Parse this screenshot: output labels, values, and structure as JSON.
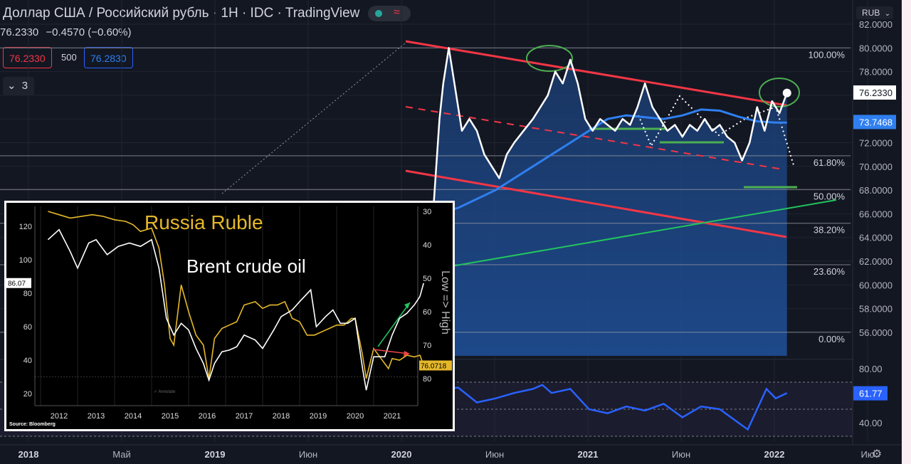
{
  "header": {
    "title": "Доллар США / Российский рубль · 1H · IDC · TradingView",
    "price": "76.2330",
    "change": "−0.4570 (−0.60%)",
    "bid": "76.2330",
    "spread": "500",
    "ask": "76.2830",
    "collapse_count": "3",
    "currency": "RUB",
    "currency_chevron": "chevron-down-icon"
  },
  "colors": {
    "background": "#131722",
    "price_line": "#ffffff",
    "ma_line": "#2f7ff0",
    "channel_line": "#f23645",
    "support_line": "#4caf50",
    "trend_line": "#22c55e",
    "fill": "#1e4b8f",
    "rsi_line": "#2962ff",
    "brent_line": "#e5b82a"
  },
  "chart_data": [
    {
      "type": "line",
      "title": "Доллар США / Российский рубль",
      "x_labels": [
        "2018",
        "Май",
        "2019",
        "Июн",
        "2020",
        "Июн",
        "2021",
        "Июн",
        "2022",
        "Ию"
      ],
      "y_ticks": [
        "82.0000",
        "80.0000",
        "78.0000",
        "76.0000",
        "74.0000",
        "72.0000",
        "70.0000",
        "68.0000",
        "66.0000",
        "64.0000",
        "62.0000",
        "60.0000",
        "58.0000",
        "56.0000"
      ],
      "ylim": [
        55,
        82.5
      ],
      "last_price": "76.2330",
      "ma_value": "73.7468",
      "fib_levels": [
        {
          "label": "100.00%",
          "value": 80.0
        },
        {
          "label": "61.80%",
          "value": 70.9
        },
        {
          "label": "50.00%",
          "value": 68.05
        },
        {
          "label": "38.20%",
          "value": 65.2
        },
        {
          "label": "23.60%",
          "value": 61.7
        },
        {
          "label": "0.00%",
          "value": 56.0
        }
      ],
      "series": [
        {
          "values": [
            [
              2020.1,
              66
            ],
            [
              2020.17,
              67
            ],
            [
              2020.2,
              74
            ],
            [
              2020.22,
              77
            ],
            [
              2020.25,
              80
            ],
            [
              2020.28,
              77
            ],
            [
              2020.32,
              73
            ],
            [
              2020.36,
              74
            ],
            [
              2020.4,
              73
            ],
            [
              2020.44,
              71
            ],
            [
              2020.48,
              70
            ],
            [
              2020.52,
              69
            ],
            [
              2020.56,
              71
            ],
            [
              2020.6,
              72
            ],
            [
              2020.65,
              73
            ],
            [
              2020.7,
              74
            ],
            [
              2020.74,
              75
            ],
            [
              2020.78,
              76
            ],
            [
              2020.82,
              78
            ],
            [
              2020.86,
              77
            ],
            [
              2020.9,
              79
            ],
            [
              2020.94,
              77
            ],
            [
              2020.98,
              74
            ],
            [
              2021.02,
              73
            ],
            [
              2021.06,
              74
            ],
            [
              2021.1,
              73.5
            ],
            [
              2021.14,
              73
            ],
            [
              2021.18,
              74
            ],
            [
              2021.22,
              73.5
            ],
            [
              2021.26,
              75
            ],
            [
              2021.3,
              77
            ],
            [
              2021.34,
              75
            ],
            [
              2021.38,
              74
            ],
            [
              2021.42,
              73
            ],
            [
              2021.46,
              73.5
            ],
            [
              2021.5,
              72.5
            ],
            [
              2021.54,
              73.5
            ],
            [
              2021.58,
              73
            ],
            [
              2021.62,
              74
            ],
            [
              2021.66,
              73
            ],
            [
              2021.7,
              73.5
            ],
            [
              2021.74,
              72.5
            ],
            [
              2021.78,
              72
            ],
            [
              2021.82,
              70.5
            ],
            [
              2021.86,
              72
            ],
            [
              2021.9,
              75
            ],
            [
              2021.94,
              73
            ],
            [
              2021.98,
              75.5
            ],
            [
              2022.02,
              74.5
            ],
            [
              2022.06,
              76.2
            ]
          ]
        },
        {
          "values": [
            [
              2020.1,
              65.5
            ],
            [
              2020.3,
              66.5
            ],
            [
              2020.5,
              68
            ],
            [
              2020.7,
              70
            ],
            [
              2020.9,
              72
            ],
            [
              2021.0,
              73
            ],
            [
              2021.1,
              74
            ],
            [
              2021.2,
              74.3
            ],
            [
              2021.4,
              74
            ],
            [
              2021.5,
              74.3
            ],
            [
              2021.6,
              74.8
            ],
            [
              2021.7,
              74.7
            ],
            [
              2021.8,
              74.2
            ],
            [
              2021.9,
              73.8
            ],
            [
              2022.0,
              73.7
            ],
            [
              2022.06,
              73.7
            ]
          ]
        }
      ]
    },
    {
      "type": "line",
      "y_ticks": [
        "80.00",
        "40.00"
      ],
      "last_value": "61.77",
      "ylim": [
        25,
        85
      ],
      "series": [
        {
          "values": [
            [
              2020.18,
              64
            ],
            [
              2020.3,
              66
            ],
            [
              2020.4,
              55
            ],
            [
              2020.5,
              58
            ],
            [
              2020.6,
              62
            ],
            [
              2020.7,
              65
            ],
            [
              2020.75,
              68
            ],
            [
              2020.8,
              62
            ],
            [
              2020.9,
              65
            ],
            [
              2021.0,
              50
            ],
            [
              2021.1,
              47
            ],
            [
              2021.2,
              52
            ],
            [
              2021.3,
              49
            ],
            [
              2021.4,
              54
            ],
            [
              2021.5,
              44
            ],
            [
              2021.6,
              52
            ],
            [
              2021.7,
              50
            ],
            [
              2021.8,
              40
            ],
            [
              2021.85,
              35
            ],
            [
              2021.9,
              50
            ],
            [
              2021.95,
              65
            ],
            [
              2022.0,
              58
            ],
            [
              2022.06,
              62
            ]
          ]
        }
      ]
    },
    {
      "type": "line",
      "title": "Russia Ruble",
      "subtitle": "Brent crude oil",
      "x_labels": [
        "2012",
        "2013",
        "2014",
        "2015",
        "2016",
        "2017",
        "2018",
        "2019",
        "2020",
        "2021"
      ],
      "y_left_ticks": [
        "120",
        "100",
        "80",
        "60",
        "40",
        "20"
      ],
      "y_right_ticks": [
        "30",
        "40",
        "50",
        "60",
        "70",
        "80"
      ],
      "right_axis_label": "Low => High",
      "left_last": "86.07",
      "right_last": "76.0718",
      "annotate": "Annotate",
      "source": "Source: Bloomberg",
      "series": [
        {
          "name": "Brent crude oil",
          "values": [
            [
              2011.7,
              112
            ],
            [
              2012.0,
              118
            ],
            [
              2012.3,
              105
            ],
            [
              2012.5,
              95
            ],
            [
              2012.8,
              110
            ],
            [
              2013.0,
              112
            ],
            [
              2013.3,
              103
            ],
            [
              2013.6,
              108
            ],
            [
              2013.9,
              110
            ],
            [
              2014.2,
              108
            ],
            [
              2014.5,
              112
            ],
            [
              2014.7,
              95
            ],
            [
              2014.9,
              65
            ],
            [
              2015.1,
              55
            ],
            [
              2015.3,
              62
            ],
            [
              2015.5,
              58
            ],
            [
              2015.7,
              47
            ],
            [
              2015.9,
              38
            ],
            [
              2016.05,
              28
            ],
            [
              2016.2,
              38
            ],
            [
              2016.4,
              45
            ],
            [
              2016.6,
              46
            ],
            [
              2016.8,
              48
            ],
            [
              2017.0,
              55
            ],
            [
              2017.3,
              52
            ],
            [
              2017.5,
              47
            ],
            [
              2017.8,
              58
            ],
            [
              2018.0,
              66
            ],
            [
              2018.3,
              70
            ],
            [
              2018.5,
              75
            ],
            [
              2018.8,
              82
            ],
            [
              2018.95,
              60
            ],
            [
              2019.2,
              66
            ],
            [
              2019.4,
              70
            ],
            [
              2019.6,
              62
            ],
            [
              2019.8,
              62
            ],
            [
              2020.0,
              65
            ],
            [
              2020.2,
              35
            ],
            [
              2020.3,
              22
            ],
            [
              2020.5,
              42
            ],
            [
              2020.8,
              42
            ],
            [
              2021.0,
              55
            ],
            [
              2021.2,
              65
            ],
            [
              2021.4,
              68
            ],
            [
              2021.6,
              73
            ],
            [
              2021.75,
              78
            ],
            [
              2021.85,
              86
            ]
          ]
        },
        {
          "name": "Russia Ruble",
          "values": [
            [
              2011.7,
              30
            ],
            [
              2012.0,
              31
            ],
            [
              2012.3,
              32
            ],
            [
              2012.6,
              31.5
            ],
            [
              2012.9,
              31
            ],
            [
              2013.2,
              31.5
            ],
            [
              2013.5,
              32.5
            ],
            [
              2013.8,
              33
            ],
            [
              2014.0,
              34
            ],
            [
              2014.2,
              36
            ],
            [
              2014.5,
              35
            ],
            [
              2014.7,
              41
            ],
            [
              2014.85,
              52
            ],
            [
              2015.0,
              68
            ],
            [
              2015.1,
              70
            ],
            [
              2015.3,
              52
            ],
            [
              2015.5,
              60
            ],
            [
              2015.7,
              67
            ],
            [
              2015.9,
              70
            ],
            [
              2016.05,
              80
            ],
            [
              2016.2,
              68
            ],
            [
              2016.4,
              65
            ],
            [
              2016.6,
              64
            ],
            [
              2016.8,
              63
            ],
            [
              2017.0,
              58
            ],
            [
              2017.3,
              57
            ],
            [
              2017.5,
              59
            ],
            [
              2017.7,
              58
            ],
            [
              2017.9,
              58
            ],
            [
              2018.1,
              57
            ],
            [
              2018.3,
              62
            ],
            [
              2018.5,
              63
            ],
            [
              2018.7,
              67
            ],
            [
              2018.9,
              67
            ],
            [
              2019.1,
              66
            ],
            [
              2019.3,
              65
            ],
            [
              2019.5,
              64
            ],
            [
              2019.7,
              64
            ],
            [
              2019.9,
              62
            ],
            [
              2020.0,
              62
            ],
            [
              2020.2,
              73
            ],
            [
              2020.3,
              80
            ],
            [
              2020.5,
              71
            ],
            [
              2020.7,
              74
            ],
            [
              2020.9,
              77
            ],
            [
              2021.0,
              74
            ],
            [
              2021.2,
              74.5
            ],
            [
              2021.4,
              73
            ],
            [
              2021.6,
              73.5
            ],
            [
              2021.75,
              73
            ],
            [
              2021.85,
              76
            ]
          ]
        }
      ]
    }
  ]
}
